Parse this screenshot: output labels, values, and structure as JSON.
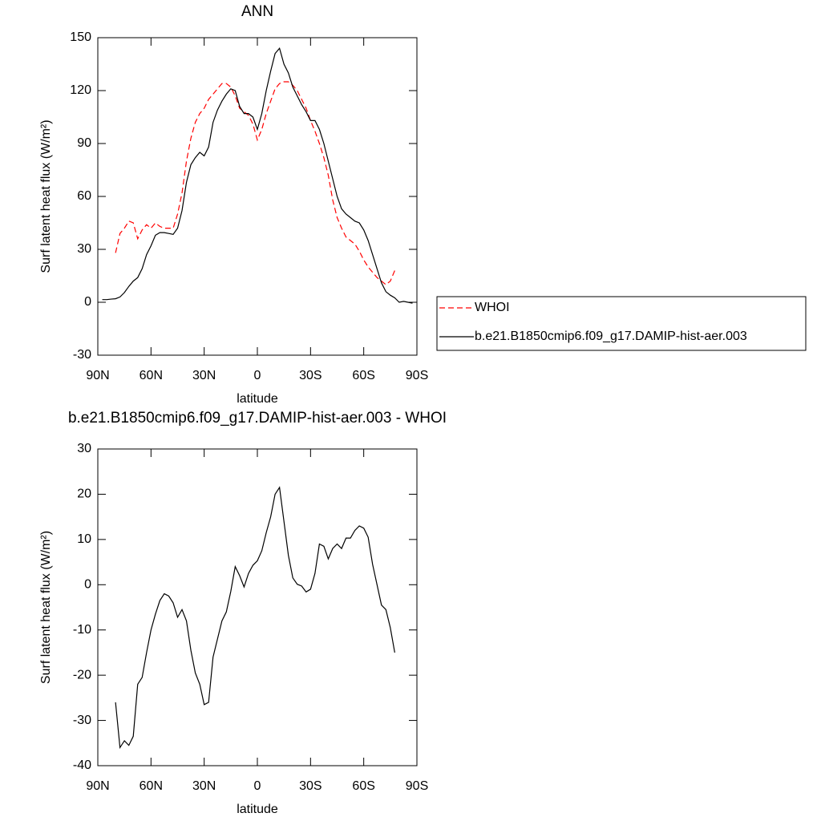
{
  "chart_data": [
    {
      "type": "line",
      "title": "ANN",
      "xlabel": "latitude",
      "ylabel": "Surf latent heat flux (W/m²)",
      "xlim": [
        90,
        -90
      ],
      "xticks": [
        {
          "value": 90,
          "label": "90N"
        },
        {
          "value": 60,
          "label": "60N"
        },
        {
          "value": 30,
          "label": "30N"
        },
        0,
        {
          "value": -30,
          "label": "30S"
        },
        {
          "value": -60,
          "label": "60S"
        },
        {
          "value": -90,
          "label": "90S"
        }
      ],
      "ylim": [
        -30,
        150
      ],
      "yticks": [
        -30,
        0,
        30,
        60,
        90,
        120,
        150
      ],
      "legend": "outside-right",
      "x": [
        87.5,
        85,
        82.5,
        80,
        77.5,
        75,
        72.5,
        70,
        67.5,
        65,
        62.5,
        60,
        57.5,
        55,
        52.5,
        50,
        47.5,
        45,
        42.5,
        40,
        37.5,
        35,
        32.5,
        30,
        27.5,
        25,
        22.5,
        20,
        17.5,
        15,
        12.5,
        10,
        7.5,
        5,
        2.5,
        0,
        -2.5,
        -5,
        -7.5,
        -10,
        -12.5,
        -15,
        -17.5,
        -20,
        -22.5,
        -25,
        -27.5,
        -30,
        -32.5,
        -35,
        -37.5,
        -40,
        -42.5,
        -45,
        -47.5,
        -50,
        -52.5,
        -55,
        -57.5,
        -60,
        -62.5,
        -65,
        -67.5,
        -70,
        -72.5,
        -75,
        -77.5,
        -80,
        -82.5,
        -85,
        -87.5
      ],
      "series": [
        {
          "name": "WHOI",
          "color": "#ff0000",
          "style": "dashed",
          "values": [
            null,
            null,
            null,
            28,
            39,
            42,
            46,
            45,
            36,
            41,
            44,
            42,
            45,
            43,
            42,
            42,
            42,
            50,
            62,
            80,
            93,
            102,
            107,
            110,
            115,
            118,
            121,
            124,
            124,
            122,
            117,
            110,
            108,
            106,
            101,
            92,
            98,
            107,
            114,
            121,
            124,
            125,
            125,
            123,
            120,
            115,
            110,
            103,
            97,
            90,
            82,
            72,
            58,
            48,
            42,
            37,
            35,
            33,
            29,
            24,
            20,
            17,
            14,
            12,
            10,
            12,
            18,
            null,
            null,
            null,
            null
          ]
        },
        {
          "name": "b.e21.B1850cmip6.f09_g17.DAMIP-hist-aer.003",
          "color": "#000000",
          "style": "solid",
          "values": [
            1.5,
            1.5,
            1.8,
            2,
            3,
            5.5,
            9,
            12,
            14,
            19,
            27,
            32,
            38,
            39.5,
            39.5,
            39,
            38.5,
            42,
            52,
            68,
            78,
            82,
            85,
            83,
            88,
            102,
            109,
            114,
            118,
            121,
            120,
            111,
            107,
            107,
            105,
            98,
            107,
            120,
            131,
            141,
            144,
            135,
            130,
            122,
            117,
            112,
            108,
            103,
            103,
            98,
            90,
            80,
            70,
            60,
            53,
            50,
            48,
            46,
            45,
            41,
            35,
            27,
            19,
            11,
            6,
            4,
            2.5,
            0,
            0.5,
            0,
            -0.5
          ]
        }
      ]
    },
    {
      "type": "line",
      "title": "b.e21.B1850cmip6.f09_g17.DAMIP-hist-aer.003 - WHOI",
      "xlabel": "latitude",
      "ylabel": "Surf latent heat flux (W/m²)",
      "xlim": [
        90,
        -90
      ],
      "xticks": [
        {
          "value": 90,
          "label": "90N"
        },
        {
          "value": 60,
          "label": "60N"
        },
        {
          "value": 30,
          "label": "30N"
        },
        0,
        {
          "value": -30,
          "label": "30S"
        },
        {
          "value": -60,
          "label": "60S"
        },
        {
          "value": -90,
          "label": "90S"
        }
      ],
      "ylim": [
        -40,
        30
      ],
      "yticks": [
        -40,
        -30,
        -20,
        -10,
        0,
        10,
        20,
        30
      ],
      "color": "#000000",
      "x": [
        87.5,
        85,
        82.5,
        80,
        77.5,
        75,
        72.5,
        70,
        67.5,
        65,
        62.5,
        60,
        57.5,
        55,
        52.5,
        50,
        47.5,
        45,
        42.5,
        40,
        37.5,
        35,
        32.5,
        30,
        27.5,
        25,
        22.5,
        20,
        17.5,
        15,
        12.5,
        10,
        7.5,
        5,
        2.5,
        0,
        -2.5,
        -5,
        -7.5,
        -10,
        -12.5,
        -15,
        -17.5,
        -20,
        -22.5,
        -25,
        -27.5,
        -30,
        -32.5,
        -35,
        -37.5,
        -40,
        -42.5,
        -45,
        -47.5,
        -50,
        -52.5,
        -55,
        -57.5,
        -60,
        -62.5,
        -65,
        -67.5,
        -70,
        -72.5,
        -75,
        -77.5,
        -80,
        -82.5,
        -85,
        -87.5
      ],
      "values": [
        null,
        null,
        null,
        -26,
        -36,
        -34.5,
        -35.5,
        -33.5,
        -22,
        -20.5,
        -15,
        -10,
        -6.5,
        -3.5,
        -2,
        -2.5,
        -4,
        -7.2,
        -5.5,
        -8,
        -14.5,
        -19.5,
        -22,
        -26.5,
        -26,
        -16,
        -12,
        -8,
        -6,
        -1.5,
        4,
        2,
        -0.5,
        2.5,
        4.3,
        5.3,
        7.5,
        11.5,
        15,
        20,
        21.5,
        14,
        6.5,
        1.5,
        0.1,
        -0.3,
        -1.6,
        -1,
        2.5,
        9,
        8.5,
        5.7,
        8,
        9,
        8,
        10.3,
        10.3,
        12,
        13,
        12.5,
        10.5,
        4.5,
        0,
        -4.5,
        -5.5,
        -9.5,
        -15,
        null,
        null,
        null,
        null
      ]
    }
  ]
}
